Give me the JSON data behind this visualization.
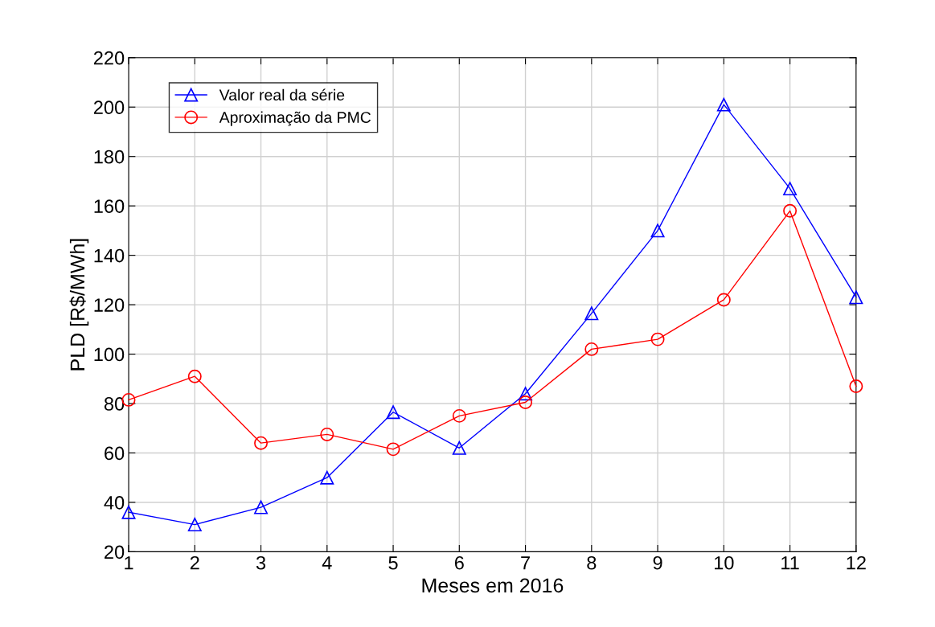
{
  "chart_data": {
    "type": "line",
    "xlabel": "Meses em 2016",
    "ylabel": "PLD [R$/MWh]",
    "x": [
      1,
      2,
      3,
      4,
      5,
      6,
      7,
      8,
      9,
      10,
      11,
      12
    ],
    "series": [
      {
        "name": "Valor real da série",
        "color": "#0000ff",
        "marker": "triangle",
        "values": [
          36,
          31,
          38,
          50,
          76.5,
          62,
          84,
          116.5,
          150,
          201,
          167,
          123
        ]
      },
      {
        "name": "Aproximação da PMC",
        "color": "#ff0000",
        "marker": "circle",
        "values": [
          81.5,
          91,
          64,
          67.5,
          61.5,
          75,
          80.5,
          102,
          106,
          122,
          158,
          87
        ]
      }
    ],
    "xlim": [
      1,
      12
    ],
    "xticks": [
      1,
      2,
      3,
      4,
      5,
      6,
      7,
      8,
      9,
      10,
      11,
      12
    ],
    "ylim": [
      20,
      220
    ],
    "yticks": [
      20,
      40,
      60,
      80,
      100,
      120,
      140,
      160,
      180,
      200,
      220
    ],
    "grid": true,
    "legend": "top left",
    "line_style": "solid"
  }
}
